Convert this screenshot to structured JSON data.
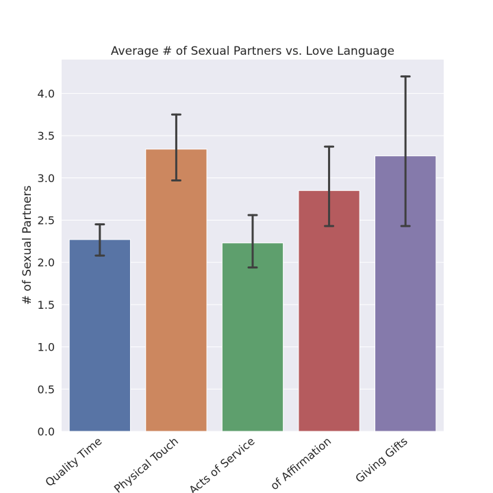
{
  "chart_data": {
    "type": "bar",
    "title": "Average # of Sexual Partners vs. Love Language",
    "xlabel": "",
    "ylabel": "# of Sexual Partners",
    "categories": [
      "Quality Time",
      "Physical Touch",
      "Acts of Service",
      "Words of Affirmation",
      "Giving Gifts"
    ],
    "category_labels_visible": [
      "Quality Time",
      "Physical Touch",
      "Acts of Service",
      "of Affirmation",
      "Giving Gifts"
    ],
    "values": [
      2.27,
      3.34,
      2.23,
      2.85,
      3.26
    ],
    "error_low": [
      2.08,
      2.97,
      1.94,
      2.43,
      2.43
    ],
    "error_high": [
      2.45,
      3.75,
      2.56,
      3.37,
      4.2
    ],
    "ylim": [
      0,
      4.4
    ],
    "yticks": [
      0.0,
      0.5,
      1.0,
      1.5,
      2.0,
      2.5,
      3.0,
      3.5,
      4.0
    ],
    "ytick_labels": [
      "0.0",
      "0.5",
      "1.0",
      "1.5",
      "2.0",
      "2.5",
      "3.0",
      "3.5",
      "4.0"
    ],
    "grid": true,
    "colors": [
      "#5874a5",
      "#cc875f",
      "#5e9f6d",
      "#b55b5e",
      "#857aab"
    ],
    "background_color": "#eaeaf2",
    "grid_color": "#ffffff",
    "errorbar_color": "#3f3f3f"
  }
}
